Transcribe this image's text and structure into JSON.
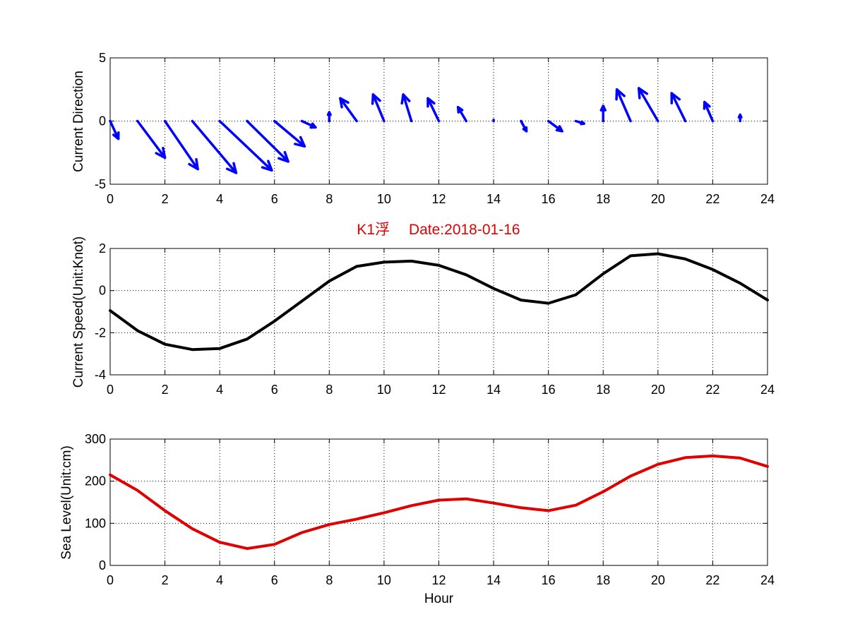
{
  "figure": {
    "title": "K1浮 　Date:2018-01-16",
    "title_color": "#e00000"
  },
  "chart_data": [
    {
      "type": "quiver",
      "title": "",
      "xlabel": "",
      "ylabel": "Current Direction",
      "xlim": [
        0,
        24
      ],
      "ylim": [
        -5,
        5
      ],
      "xticks": [
        0,
        2,
        4,
        6,
        8,
        10,
        12,
        14,
        16,
        18,
        20,
        22,
        24
      ],
      "yticks": [
        -5,
        0,
        5
      ],
      "grid": true,
      "color": "#0000ff",
      "x": [
        0,
        1,
        2,
        3,
        4,
        5,
        6,
        7,
        8,
        9,
        10,
        11,
        12,
        13,
        14,
        15,
        16,
        17,
        18,
        19,
        20,
        21,
        22,
        23
      ],
      "u": [
        0.3,
        1.0,
        1.2,
        1.6,
        1.9,
        1.5,
        1.1,
        0.5,
        0.0,
        -0.6,
        -0.4,
        -0.3,
        -0.4,
        -0.3,
        0.0,
        0.2,
        0.5,
        0.3,
        0.0,
        -0.5,
        -0.7,
        -0.5,
        -0.3,
        0.0
      ],
      "v": [
        -1.4,
        -2.9,
        -3.8,
        -4.1,
        -3.9,
        -3.2,
        -2.0,
        -0.5,
        0.7,
        1.8,
        2.1,
        2.1,
        1.8,
        1.1,
        0.1,
        -0.8,
        -0.8,
        -0.2,
        1.2,
        2.5,
        2.6,
        2.2,
        1.5,
        0.5
      ]
    },
    {
      "type": "line",
      "title": "",
      "xlabel": "",
      "ylabel": "Current Speed(Unit:Knot)",
      "xlim": [
        0,
        24
      ],
      "ylim": [
        -4,
        2
      ],
      "xticks": [
        0,
        2,
        4,
        6,
        8,
        10,
        12,
        14,
        16,
        18,
        20,
        22,
        24
      ],
      "yticks": [
        -4,
        -2,
        0,
        2
      ],
      "grid": true,
      "color": "#000000",
      "x": [
        0,
        1,
        2,
        3,
        4,
        5,
        6,
        7,
        8,
        9,
        10,
        11,
        12,
        13,
        14,
        15,
        16,
        17,
        18,
        19,
        20,
        21,
        22,
        23,
        24
      ],
      "y": [
        -0.95,
        -1.9,
        -2.55,
        -2.8,
        -2.75,
        -2.3,
        -1.45,
        -0.5,
        0.45,
        1.15,
        1.35,
        1.4,
        1.2,
        0.75,
        0.1,
        -0.45,
        -0.6,
        -0.2,
        0.8,
        1.65,
        1.75,
        1.5,
        1.0,
        0.35,
        -0.45
      ]
    },
    {
      "type": "line",
      "title": "",
      "xlabel": "Hour",
      "ylabel": "Sea Level(Unit:cm)",
      "xlim": [
        0,
        24
      ],
      "ylim": [
        0,
        300
      ],
      "xticks": [
        0,
        2,
        4,
        6,
        8,
        10,
        12,
        14,
        16,
        18,
        20,
        22,
        24
      ],
      "yticks": [
        0,
        100,
        200,
        300
      ],
      "grid": true,
      "color": "#e00000",
      "x": [
        0,
        1,
        2,
        3,
        4,
        5,
        6,
        7,
        8,
        9,
        10,
        11,
        12,
        13,
        14,
        15,
        16,
        17,
        18,
        19,
        20,
        21,
        22,
        23,
        24
      ],
      "y": [
        215,
        178,
        130,
        87,
        55,
        40,
        50,
        78,
        97,
        110,
        125,
        142,
        155,
        158,
        148,
        137,
        130,
        143,
        175,
        212,
        240,
        256,
        260,
        255,
        235
      ]
    }
  ]
}
